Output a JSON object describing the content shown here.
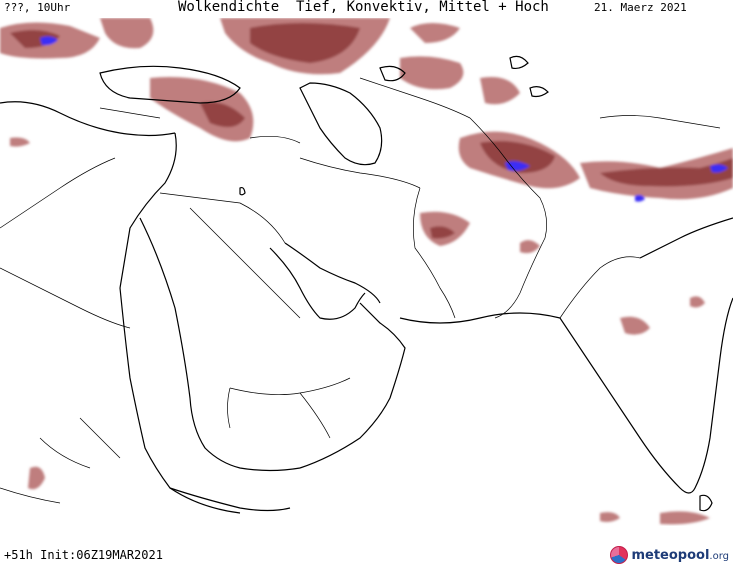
{
  "header": {
    "location": "???, 10Uhr",
    "title": "Wolkendichte  Tief, Konvektiv, Mittel + Hoch",
    "date": "21. Maerz 2021"
  },
  "footer": {
    "init": "+51h Init:06Z19MAR2021",
    "logo_main": "meteopool",
    "logo_tld": ".org"
  },
  "colors": {
    "cloud_dense": "#8b3a3a",
    "cloud_light": "#b87070",
    "cloud_convective": "#3b2ef5",
    "coastline": "#000000",
    "border": "#000000"
  }
}
